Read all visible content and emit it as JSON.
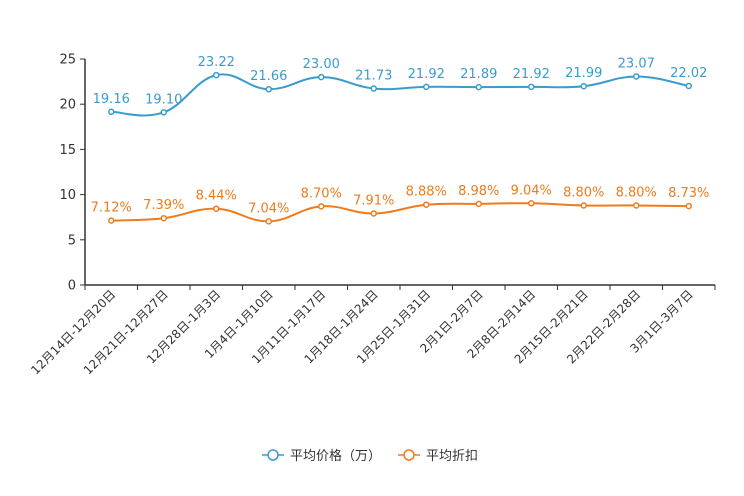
{
  "chart_data": {
    "type": "line",
    "categories": [
      "12月14日-12月20日",
      "12月21日-12月27日",
      "12月28日-1月3日",
      "1月4日-1月10日",
      "1月11日-1月17日",
      "1月18日-1月24日",
      "1月25日-1月31日",
      "2月1日-2月7日",
      "2月8日-2月14日",
      "2月15日-2月21日",
      "2月22日-2月28日",
      "3月1日-3月7日"
    ],
    "ylim": [
      0,
      25
    ],
    "yticks": [
      0,
      5,
      10,
      15,
      20,
      25
    ],
    "ytick_labels": [
      "0",
      "5",
      "10",
      "15",
      "20",
      "25"
    ],
    "series": [
      {
        "name": "平均价格（万）",
        "color": "#3a9bcd",
        "values": [
          19.16,
          19.1,
          23.22,
          21.66,
          23.0,
          21.73,
          21.92,
          21.89,
          21.92,
          21.99,
          23.07,
          22.02
        ],
        "labels": [
          "19.16",
          "19.10",
          "23.22",
          "21.66",
          "23.00",
          "21.73",
          "21.92",
          "21.89",
          "21.92",
          "21.99",
          "23.07",
          "22.02"
        ]
      },
      {
        "name": "平均折扣",
        "color": "#f07b1c",
        "values": [
          7.12,
          7.39,
          8.44,
          7.04,
          8.7,
          7.91,
          8.88,
          8.98,
          9.04,
          8.8,
          8.8,
          8.73
        ],
        "labels": [
          "7.12%",
          "7.39%",
          "8.44%",
          "7.04%",
          "8.70%",
          "7.91%",
          "8.88%",
          "8.98%",
          "9.04%",
          "8.80%",
          "8.80%",
          "8.73%"
        ]
      }
    ],
    "legend_position": "bottom-center"
  }
}
